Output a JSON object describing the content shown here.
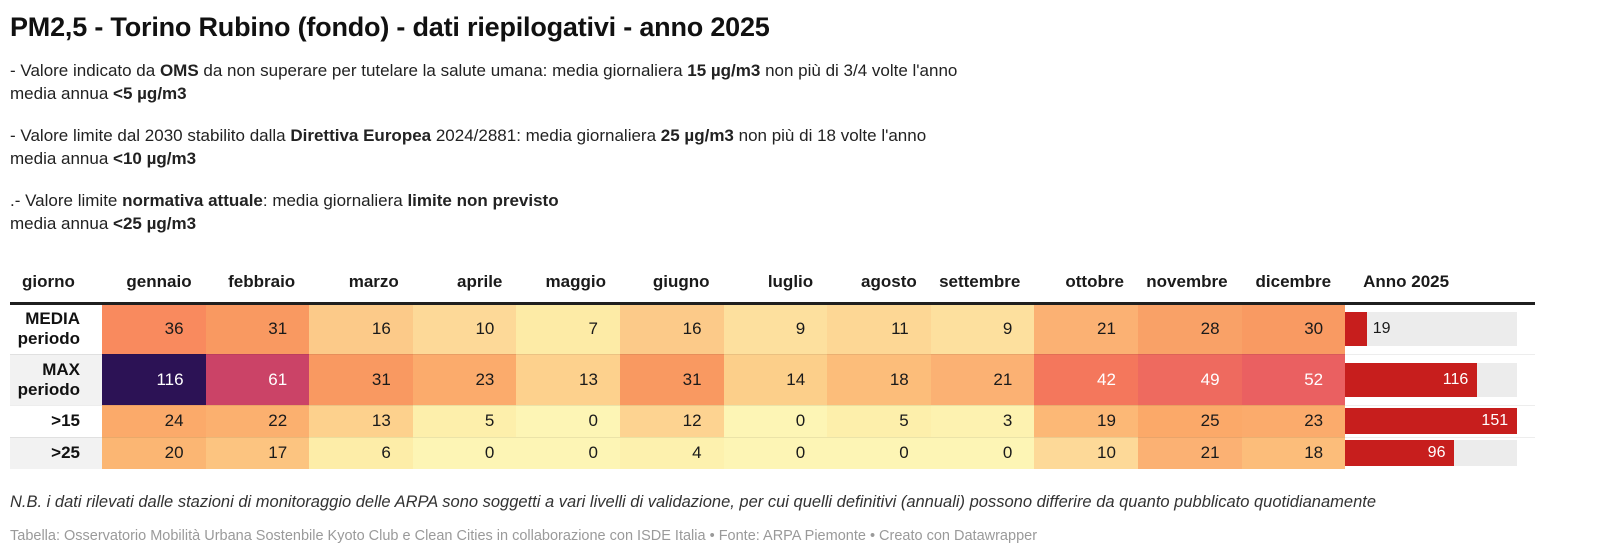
{
  "title": "PM2,5 - Torino Rubino (fondo) - dati riepilogativi - anno 2025",
  "notes": [
    {
      "lines": [
        [
          {
            "t": "- Valore indicato da "
          },
          {
            "t": "OMS",
            "b": true
          },
          {
            "t": " da non superare per tutelare la salute umana: media giornaliera "
          },
          {
            "t": "15 µg/m3",
            "b": true
          },
          {
            "t": " non più di 3/4 volte l'anno"
          }
        ],
        [
          {
            "t": "media annua "
          },
          {
            "t": "<5 µg/m3",
            "b": true
          }
        ]
      ]
    },
    {
      "lines": [
        [
          {
            "t": "- Valore limite dal 2030 stabilito dalla "
          },
          {
            "t": "Direttiva Europea",
            "b": true
          },
          {
            "t": " 2024/2881: media giornaliera "
          },
          {
            "t": "25 µg/m3",
            "b": true
          },
          {
            "t": " non più di 18 volte l'anno"
          }
        ],
        [
          {
            "t": "media annua "
          },
          {
            "t": "<10 µg/m3",
            "b": true
          }
        ]
      ]
    },
    {
      "lines": [
        [
          {
            "t": ".- Valore limite "
          },
          {
            "t": "normativa attuale",
            "b": true
          },
          {
            "t": ": media giornaliera "
          },
          {
            "t": "limite non previsto",
            "b": true
          }
        ],
        [
          {
            "t": "media annua "
          },
          {
            "t": "<25 µg/m3",
            "b": true
          }
        ]
      ]
    }
  ],
  "table": {
    "columns": [
      "giorno",
      "gennaio",
      "febbraio",
      "marzo",
      "aprile",
      "maggio",
      "giugno",
      "luglio",
      "agosto",
      "settembre",
      "ottobre",
      "novembre",
      "dicembre",
      "Anno 2025"
    ],
    "bar_max": 151,
    "bar_color": "#c71e1d",
    "track_color": "#ececec",
    "rows": [
      {
        "label": "MEDIA periodo",
        "cells": [
          {
            "v": 36,
            "bg": "#f98a5e"
          },
          {
            "v": 31,
            "bg": "#f99961"
          },
          {
            "v": 16,
            "bg": "#fcca89"
          },
          {
            "v": 10,
            "bg": "#fdd998"
          },
          {
            "v": 7,
            "bg": "#fdeba6"
          },
          {
            "v": 16,
            "bg": "#fcca89"
          },
          {
            "v": 9,
            "bg": "#fde09e"
          },
          {
            "v": 11,
            "bg": "#fdd795"
          },
          {
            "v": 9,
            "bg": "#fde09e"
          },
          {
            "v": 21,
            "bg": "#fbb173"
          },
          {
            "v": 28,
            "bg": "#f9a167"
          },
          {
            "v": 30,
            "bg": "#f99a62"
          }
        ],
        "bar": {
          "value": 19
        }
      },
      {
        "label": "MAX periodo",
        "cells": [
          {
            "v": 116,
            "bg": "#2c1255",
            "fg": "#ffffff"
          },
          {
            "v": 61,
            "bg": "#cb4367",
            "fg": "#ffffff"
          },
          {
            "v": 31,
            "bg": "#f99961"
          },
          {
            "v": 23,
            "bg": "#fbab6c"
          },
          {
            "v": 13,
            "bg": "#fdd18d"
          },
          {
            "v": 31,
            "bg": "#f99961"
          },
          {
            "v": 14,
            "bg": "#fccf8a"
          },
          {
            "v": 18,
            "bg": "#fcbd7a"
          },
          {
            "v": 21,
            "bg": "#fbb173"
          },
          {
            "v": 42,
            "bg": "#f4775c",
            "fg": "#ffffff"
          },
          {
            "v": 49,
            "bg": "#ee6a5f",
            "fg": "#ffffff"
          },
          {
            "v": 52,
            "bg": "#ea6061",
            "fg": "#ffffff"
          }
        ],
        "bar": {
          "value": 116
        }
      },
      {
        "label": ">15",
        "cells": [
          {
            "v": 24,
            "bg": "#fbaa6a"
          },
          {
            "v": 22,
            "bg": "#fbb06f"
          },
          {
            "v": 13,
            "bg": "#fdd18d"
          },
          {
            "v": 5,
            "bg": "#fdefab"
          },
          {
            "v": 0,
            "bg": "#fdf5b5"
          },
          {
            "v": 12,
            "bg": "#fdd391"
          },
          {
            "v": 0,
            "bg": "#fdf5b5"
          },
          {
            "v": 5,
            "bg": "#fdefab"
          },
          {
            "v": 3,
            "bg": "#fdf2b0"
          },
          {
            "v": 19,
            "bg": "#fcb876"
          },
          {
            "v": 25,
            "bg": "#fba969"
          },
          {
            "v": 23,
            "bg": "#fbab6c"
          }
        ],
        "bar": {
          "value": 151
        }
      },
      {
        "label": ">25",
        "cells": [
          {
            "v": 20,
            "bg": "#fbb673"
          },
          {
            "v": 17,
            "bg": "#fcc480"
          },
          {
            "v": 6,
            "bg": "#fdeda8"
          },
          {
            "v": 0,
            "bg": "#fdf5b5"
          },
          {
            "v": 0,
            "bg": "#fdf5b5"
          },
          {
            "v": 4,
            "bg": "#fdf1ae"
          },
          {
            "v": 0,
            "bg": "#fdf5b5"
          },
          {
            "v": 0,
            "bg": "#fdf5b5"
          },
          {
            "v": 0,
            "bg": "#fdf5b5"
          },
          {
            "v": 10,
            "bg": "#fdd998"
          },
          {
            "v": 21,
            "bg": "#fbb173"
          },
          {
            "v": 18,
            "bg": "#fcbd7a"
          }
        ],
        "bar": {
          "value": 96
        }
      }
    ]
  },
  "footnote": "N.B. i dati rilevati dalle stazioni di monitoraggio delle ARPA sono soggetti a vari livelli di validazione, per cui quelli definitivi (annuali) possono differire da quanto pubblicato quotidianamente",
  "attribution": "Tabella: Osservatorio Mobilità Urbana Sostenbile Kyoto Club e Clean Cities in collaborazione con ISDE Italia • Fonte: ARPA Piemonte • Creato con Datawrapper",
  "chart_data": {
    "type": "table",
    "title": "PM2,5 - Torino Rubino (fondo) - dati riepilogativi - anno 2025",
    "categories": [
      "gennaio",
      "febbraio",
      "marzo",
      "aprile",
      "maggio",
      "giugno",
      "luglio",
      "agosto",
      "settembre",
      "ottobre",
      "novembre",
      "dicembre"
    ],
    "series": [
      {
        "name": "MEDIA periodo",
        "values": [
          36,
          31,
          16,
          10,
          7,
          16,
          9,
          11,
          9,
          21,
          28,
          30
        ],
        "anno_2025": 19
      },
      {
        "name": "MAX periodo",
        "values": [
          116,
          61,
          31,
          23,
          13,
          31,
          14,
          18,
          21,
          42,
          49,
          52
        ],
        "anno_2025": 116
      },
      {
        "name": ">15",
        "values": [
          24,
          22,
          13,
          5,
          0,
          12,
          0,
          5,
          3,
          19,
          25,
          23
        ],
        "anno_2025": 151
      },
      {
        "name": ">25",
        "values": [
          20,
          17,
          6,
          0,
          0,
          4,
          0,
          0,
          0,
          10,
          21,
          18
        ],
        "anno_2025": 96
      }
    ],
    "layout_hints": {
      "heatmap": "reversed-magma on month cells",
      "year_bar_axis_max": 151,
      "year_bar_color": "#c71e1d"
    }
  }
}
